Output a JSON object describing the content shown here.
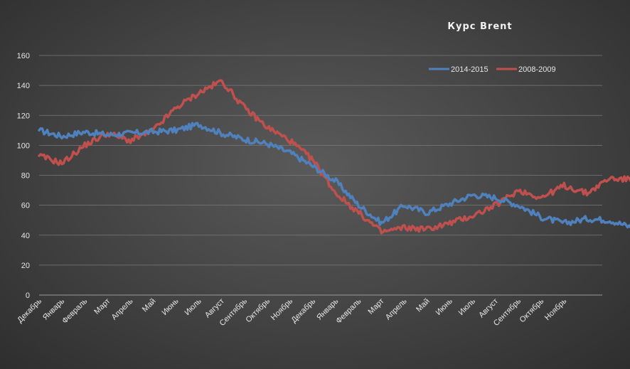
{
  "chart_data": {
    "type": "line",
    "title": "Курс Brent",
    "xlabel": "",
    "ylabel": "",
    "ylim": [
      0,
      160
    ],
    "yticks": [
      0,
      20,
      40,
      60,
      80,
      100,
      120,
      140,
      160
    ],
    "grid": true,
    "legend_position": "top-right",
    "categories": [
      "Декабрь",
      "Январь",
      "Февраль",
      "Март",
      "Апрель",
      "Май",
      "Июнь",
      "Июль",
      "Август",
      "Сентябрь",
      "Октябрь",
      "Ноябрь",
      "Декабрь",
      "Январь",
      "Февраль",
      "Март",
      "Апрель",
      "Май",
      "Июнь",
      "Июль",
      "Август",
      "Сентябрь",
      "Октябрь",
      "Ноябрь"
    ],
    "series": [
      {
        "name": "2014-2015",
        "color": "#4f81bd",
        "values": [
          110,
          106,
          109,
          107,
          108,
          109,
          110,
          114,
          108,
          104,
          101,
          95,
          86,
          76,
          60,
          48,
          60,
          55,
          61,
          67,
          65,
          60,
          52,
          48,
          51,
          50,
          45,
          37
        ],
        "x": [
          0,
          1,
          2,
          3,
          4,
          5,
          6,
          7,
          8,
          9,
          10,
          11,
          12,
          13,
          14,
          15,
          16,
          17,
          18,
          19,
          20,
          21,
          22,
          23,
          24,
          25,
          26,
          26.8
        ]
      },
      {
        "name": "2008-2009",
        "color": "#c0504d",
        "values": [
          93,
          88,
          100,
          108,
          103,
          110,
          125,
          135,
          143,
          125,
          112,
          103,
          90,
          68,
          55,
          42,
          45,
          44,
          48,
          53,
          60,
          70,
          65,
          73,
          68,
          78,
          77,
          73
        ],
        "x": [
          0,
          1,
          2,
          3,
          4,
          5,
          6,
          7,
          8,
          9,
          10,
          11,
          12,
          13,
          14,
          15,
          16,
          17,
          18,
          19,
          20,
          21,
          22,
          23,
          24,
          25,
          26,
          26.8
        ]
      }
    ]
  }
}
